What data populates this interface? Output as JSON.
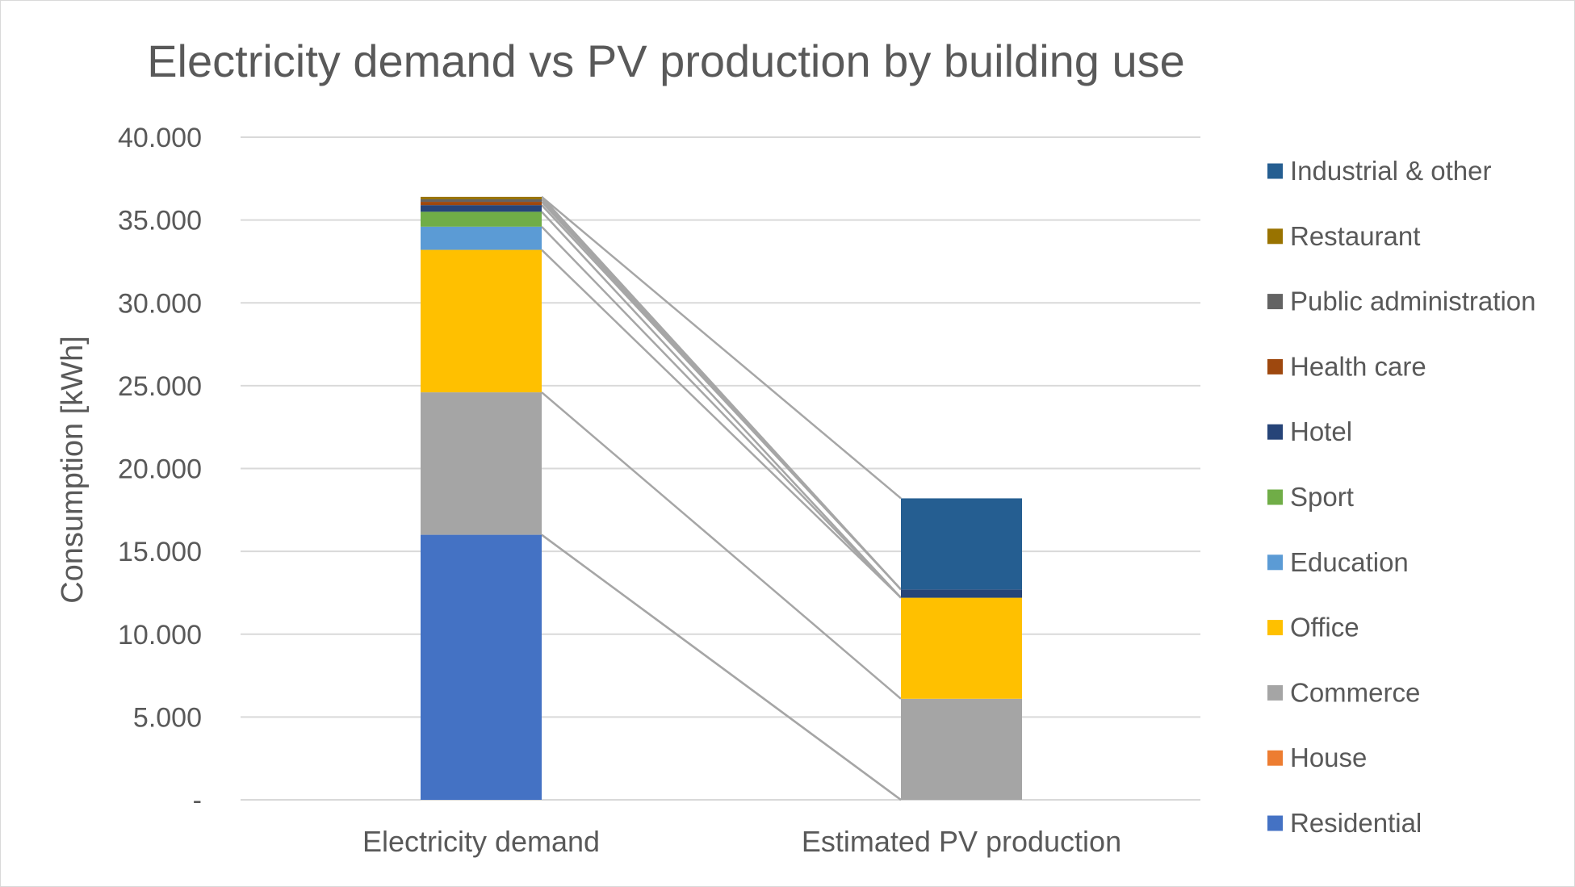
{
  "chart_data": {
    "type": "bar",
    "stacked": true,
    "title": "Electricity demand vs PV production by building use",
    "xlabel": "",
    "ylabel": "Consumption [kWh]",
    "ylim": [
      0,
      40000
    ],
    "yticks": [
      {
        "value": 0,
        "label": "-"
      },
      {
        "value": 5000,
        "label": "5.000"
      },
      {
        "value": 10000,
        "label": "10.000"
      },
      {
        "value": 15000,
        "label": "15.000"
      },
      {
        "value": 20000,
        "label": "20.000"
      },
      {
        "value": 25000,
        "label": "25.000"
      },
      {
        "value": 30000,
        "label": "30.000"
      },
      {
        "value": 35000,
        "label": "35.000"
      },
      {
        "value": 40000,
        "label": "40.000"
      }
    ],
    "grid": true,
    "legend_position": "right",
    "connector_lines": true,
    "categories": [
      "Electricity demand",
      "Estimated PV production"
    ],
    "series": [
      {
        "name": "Residential",
        "color": "#4472C4",
        "values": [
          16000,
          0
        ]
      },
      {
        "name": "House",
        "color": "#ED7D31",
        "values": [
          0,
          0
        ]
      },
      {
        "name": "Commerce",
        "color": "#A5A5A5",
        "values": [
          8600,
          6100
        ]
      },
      {
        "name": "Office",
        "color": "#FFC000",
        "values": [
          8600,
          6100
        ]
      },
      {
        "name": "Education",
        "color": "#5B9BD5",
        "values": [
          1400,
          0
        ]
      },
      {
        "name": "Sport",
        "color": "#70AD47",
        "values": [
          900,
          0
        ]
      },
      {
        "name": "Hotel",
        "color": "#264478",
        "values": [
          400,
          500
        ]
      },
      {
        "name": "Health care",
        "color": "#9E480E",
        "values": [
          200,
          0
        ]
      },
      {
        "name": "Public administration",
        "color": "#636363",
        "values": [
          150,
          0
        ]
      },
      {
        "name": "Restaurant",
        "color": "#997300",
        "values": [
          150,
          0
        ]
      },
      {
        "name": "Industrial & other",
        "color": "#255E91",
        "values": [
          0,
          5500
        ]
      }
    ]
  }
}
